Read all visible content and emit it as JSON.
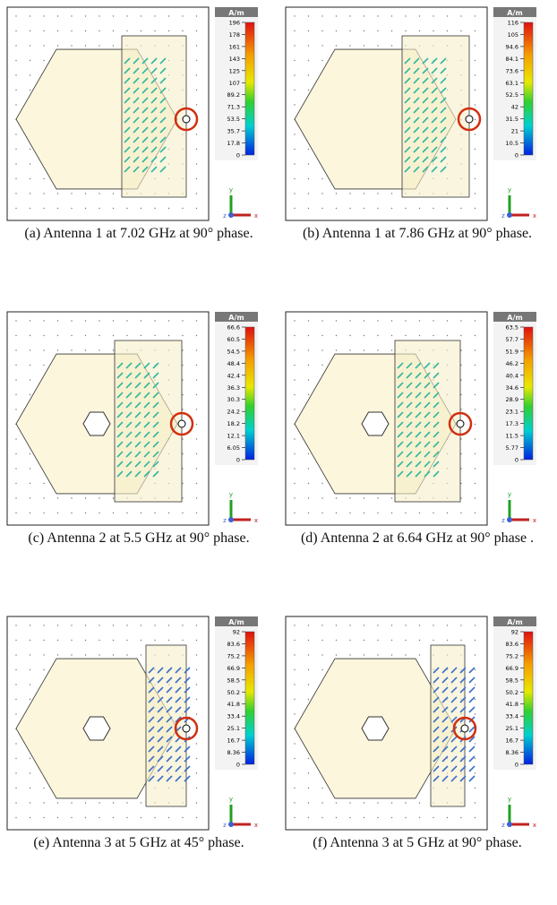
{
  "panels": [
    {
      "caption": "(a) Antenna 1 at 7.02 GHz at 90° phase.",
      "unit": "A/m",
      "ticks": [
        196,
        178,
        161,
        143,
        125,
        107,
        89.2,
        71.3,
        53.5,
        35.7,
        17.8,
        0
      ]
    },
    {
      "caption": "(b) Antenna 1 at 7.86 GHz at 90° phase.",
      "unit": "A/m",
      "ticks": [
        116,
        105,
        94.6,
        84.1,
        73.6,
        63.1,
        52.5,
        42,
        31.5,
        21,
        10.5,
        0
      ]
    },
    {
      "caption": "(c) Antenna 2 at 5.5 GHz at 90° phase.",
      "unit": "A/m",
      "ticks": [
        66.6,
        60.5,
        54.5,
        48.4,
        42.4,
        36.3,
        30.3,
        24.2,
        18.2,
        12.1,
        6.05,
        0
      ]
    },
    {
      "caption": "(d) Antenna 2 at 6.64 GHz at 90° phase .",
      "unit": "A/m",
      "ticks": [
        63.5,
        57.7,
        51.9,
        46.2,
        40.4,
        34.6,
        28.9,
        23.1,
        17.3,
        11.5,
        5.77,
        0
      ]
    },
    {
      "caption": "(e) Antenna 3 at 5 GHz at 45° phase.",
      "unit": "A/m",
      "ticks": [
        92,
        83.6,
        75.2,
        66.9,
        58.5,
        50.2,
        41.8,
        33.4,
        25.1,
        16.7,
        8.36,
        0
      ]
    },
    {
      "caption": "(f) Antenna 3 at 5 GHz at 90° phase.",
      "unit": "A/m",
      "ticks": [
        92,
        83.6,
        75.2,
        66.9,
        58.5,
        50.2,
        41.8,
        33.4,
        25.1,
        16.7,
        8.36,
        0
      ]
    }
  ],
  "axes": {
    "y": "y",
    "z": "z",
    "x": "x"
  }
}
